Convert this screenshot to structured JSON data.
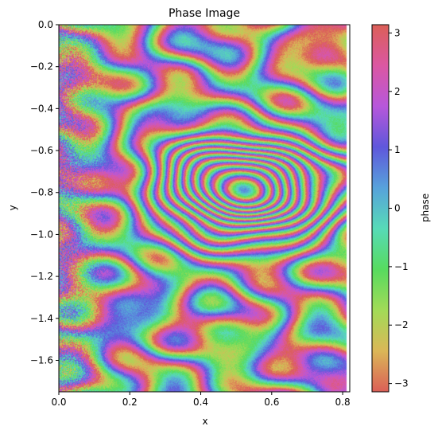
{
  "chart_data": {
    "type": "heatmap",
    "title": "Phase Image",
    "xlabel": "x",
    "ylabel": "y",
    "xlim": [
      0.0,
      0.82
    ],
    "ylim": [
      -1.75,
      0.0
    ],
    "x_ticks": [
      {
        "value": 0.0,
        "label": "0.0"
      },
      {
        "value": 0.2,
        "label": "0.2"
      },
      {
        "value": 0.4,
        "label": "0.4"
      },
      {
        "value": 0.6,
        "label": "0.6"
      },
      {
        "value": 0.8,
        "label": "0.8"
      }
    ],
    "y_ticks": [
      {
        "value": 0.0,
        "label": "0.0"
      },
      {
        "value": -0.2,
        "label": "−0.2"
      },
      {
        "value": -0.4,
        "label": "−0.4"
      },
      {
        "value": -0.6,
        "label": "−0.6"
      },
      {
        "value": -0.8,
        "label": "−0.8"
      },
      {
        "value": -1.0,
        "label": "−1.0"
      },
      {
        "value": -1.2,
        "label": "−1.2"
      },
      {
        "value": -1.4,
        "label": "−1.4"
      },
      {
        "value": -1.6,
        "label": "−1.6"
      }
    ],
    "data_extent": {
      "x": [
        0.0,
        0.81
      ],
      "y": [
        -1.75,
        0.0
      ]
    },
    "colorbar": {
      "label": "phase",
      "range": [
        -3.14159,
        3.14159
      ],
      "ticks": [
        {
          "value": 3,
          "label": "3"
        },
        {
          "value": 2,
          "label": "2"
        },
        {
          "value": 1,
          "label": "1"
        },
        {
          "value": 0,
          "label": "0"
        },
        {
          "value": -1,
          "label": "−1"
        },
        {
          "value": -2,
          "label": "−2"
        },
        {
          "value": -3,
          "label": "−3"
        }
      ],
      "colormap": [
        "#db5f57",
        "#dbb757",
        "#a2db57",
        "#57db5f",
        "#57dbb7",
        "#57a2db",
        "#5f57db",
        "#b757db",
        "#db57a2",
        "#db5f57"
      ]
    },
    "fringe_center": {
      "x": 0.52,
      "y": -0.76
    },
    "grid": false,
    "legend": "none"
  }
}
